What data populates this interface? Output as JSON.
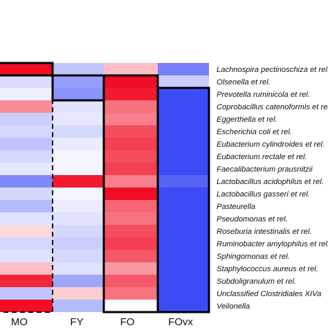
{
  "chart_data": {
    "type": "heatmap",
    "columns": [
      "MO",
      "FY",
      "FO",
      "FOvx"
    ],
    "rows": [
      "Lachnospira pectinoschiza et rel.",
      "Olsenella et rel.",
      "Prevotella ruminicola et rel.",
      "Coprobacillus catenoformis et rel.",
      "Eggerthella et rel.",
      "Escherichia coli et rel.",
      "Eubacterium cylindroides et rel.",
      "Eubacterium rectale et rel.",
      "Faecalibacterium prausnitzii",
      "Lactobacillus acidophilus et rel.",
      "Lactobacillus gasseri et rel.",
      "Pasteurella",
      "Pseudomonas et rel.",
      "Roseburia intestinalis et rel.",
      "Ruminobacter amylophilus et rel.",
      "Sphingomonas et rel.",
      "Staphylococcus aureus et rel.",
      "Subdoligranulum et rel.",
      "Unclassified Clostridiales XIVa",
      "Veilonella"
    ],
    "values": [
      [
        0.95,
        -0.3,
        0.25,
        -0.65
      ],
      [
        -0.18,
        -0.5,
        0.95,
        -0.25
      ],
      [
        -0.08,
        -0.55,
        0.9,
        -0.92
      ],
      [
        0.45,
        -0.15,
        0.55,
        -0.92
      ],
      [
        -0.25,
        -0.12,
        0.5,
        -0.92
      ],
      [
        -0.2,
        -0.2,
        0.7,
        -0.92
      ],
      [
        -0.3,
        -0.1,
        0.75,
        -0.92
      ],
      [
        -0.2,
        -0.05,
        0.7,
        -0.92
      ],
      [
        -0.12,
        -0.05,
        0.75,
        -0.92
      ],
      [
        -0.6,
        0.9,
        0.5,
        -0.8
      ],
      [
        -0.2,
        -0.05,
        0.95,
        -0.92
      ],
      [
        -0.35,
        -0.1,
        0.6,
        -0.92
      ],
      [
        -0.15,
        -0.15,
        0.55,
        -0.92
      ],
      [
        0.15,
        -0.2,
        0.7,
        -0.92
      ],
      [
        -0.2,
        -0.25,
        0.75,
        -0.92
      ],
      [
        -0.15,
        -0.2,
        0.65,
        -0.92
      ],
      [
        0.25,
        -0.15,
        0.4,
        -0.92
      ],
      [
        0.85,
        -0.45,
        0.65,
        -0.92
      ],
      [
        -0.3,
        0.2,
        0.55,
        -0.92
      ],
      [
        0.95,
        -0.35,
        0.0,
        -0.92
      ]
    ],
    "value_range": [
      -1,
      1
    ],
    "colormap": {
      "low": "#2a3cf5",
      "mid": "#ffffff",
      "high": "#f00018"
    },
    "highlight_boxes": [
      {
        "column": "MO",
        "rows": [
          0,
          0
        ],
        "style": "solid"
      },
      {
        "column": "MO",
        "rows": [
          0,
          19
        ],
        "style": "dashed"
      },
      {
        "column": "FY",
        "rows": [
          1,
          2
        ],
        "style": "solid"
      },
      {
        "column": "FO",
        "rows": [
          1,
          19
        ],
        "style": "solid"
      },
      {
        "column": "FOvx",
        "rows": [
          2,
          19
        ],
        "style": "solid"
      }
    ]
  }
}
